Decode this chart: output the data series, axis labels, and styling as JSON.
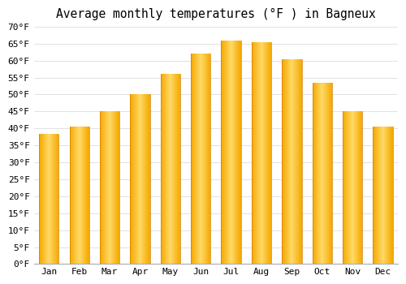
{
  "title": "Average monthly temperatures (°F ) in Bagneux",
  "months": [
    "Jan",
    "Feb",
    "Mar",
    "Apr",
    "May",
    "Jun",
    "Jul",
    "Aug",
    "Sep",
    "Oct",
    "Nov",
    "Dec"
  ],
  "values": [
    38.5,
    40.5,
    45.0,
    50.0,
    56.0,
    62.0,
    66.0,
    65.5,
    60.5,
    53.5,
    45.0,
    40.5
  ],
  "bar_color_left": "#F5A800",
  "bar_color_center": "#FFD966",
  "bar_color_right": "#F5A800",
  "ylim": [
    0,
    70
  ],
  "yticks": [
    0,
    5,
    10,
    15,
    20,
    25,
    30,
    35,
    40,
    45,
    50,
    55,
    60,
    65,
    70
  ],
  "background_color": "#FFFFFF",
  "grid_color": "#DDDDDD",
  "title_fontsize": 10.5,
  "tick_fontsize": 8,
  "bar_width": 0.65,
  "gradient_steps": 50
}
